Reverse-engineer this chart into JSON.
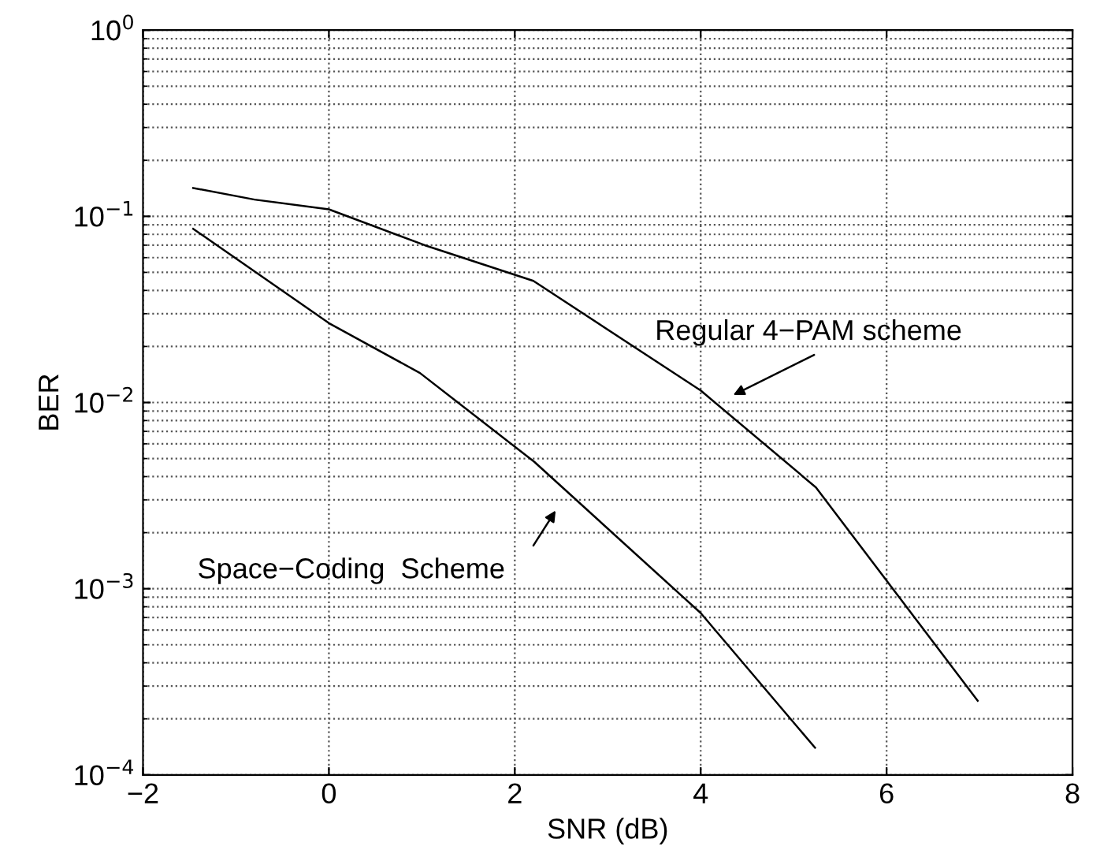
{
  "chart_data": {
    "type": "line",
    "xlabel": "SNR (dB)",
    "ylabel": "BER",
    "log": "y",
    "grid": true,
    "line_style": "solid",
    "marker": "none",
    "xlim": [
      -2,
      8
    ],
    "xticks": [
      {
        "value": -2,
        "label": "−2"
      },
      0,
      2,
      4,
      6,
      8
    ],
    "ylim": [
      0.0001,
      1
    ],
    "yticks": [
      {
        "value": 0.0001,
        "label": "10$^{−4}$"
      },
      {
        "value": 0.001,
        "label": "10$^{−3}$"
      },
      {
        "value": 0.01,
        "label": "10$^{−2}$"
      },
      {
        "value": 0.1,
        "label": "10$^{−1}$"
      },
      {
        "value": 1,
        "label": "10$^{0}$"
      }
    ],
    "series": [
      {
        "color": "#000000",
        "x": [
          -1.46,
          -0.8,
          0,
          1.03,
          2.2,
          4.0,
          5.24,
          6.98
        ],
        "values": [
          0.142,
          0.123,
          0.109,
          0.07,
          0.045,
          0.0116,
          0.0035,
          0.00025
        ]
      },
      {
        "color": "#000000",
        "x": [
          -1.46,
          0,
          0.98,
          2.21,
          4.0,
          5.23
        ],
        "values": [
          0.0857,
          0.0267,
          0.0144,
          0.0048,
          0.00074,
          0.00014
        ]
      }
    ],
    "annotations": [
      "Regular 4−PAM scheme",
      "Space−Coding  Scheme"
    ]
  }
}
